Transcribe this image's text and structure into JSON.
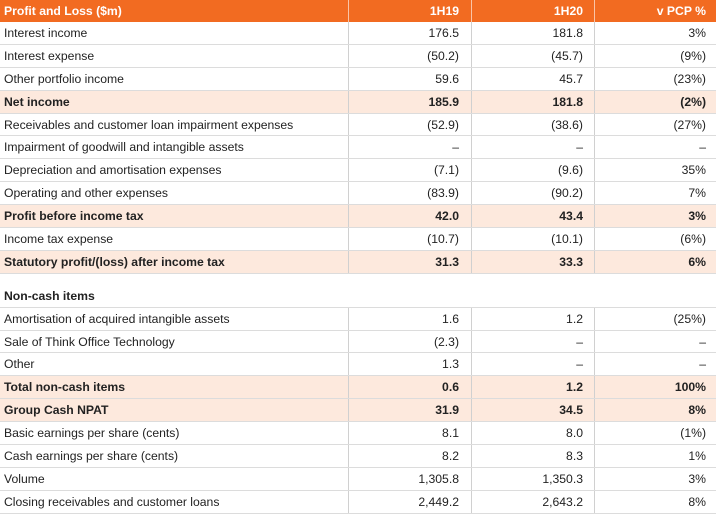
{
  "header": {
    "label": "Profit and Loss ($m)",
    "c1": "1H19",
    "c2": "1H20",
    "c3": "v PCP %"
  },
  "rows1": [
    {
      "label": "Interest income",
      "c1": "176.5",
      "c2": "181.8",
      "c3": "3%"
    },
    {
      "label": "Interest expense",
      "c1": "(50.2)",
      "c2": "(45.7)",
      "c3": "(9%)"
    },
    {
      "label": "Other portfolio income",
      "c1": "59.6",
      "c2": "45.7",
      "c3": "(23%)"
    },
    {
      "label": "Net income",
      "c1": "185.9",
      "c2": "181.8",
      "c3": "(2%)",
      "bold": true
    },
    {
      "label": "Receivables and customer loan impairment expenses",
      "c1": "(52.9)",
      "c2": "(38.6)",
      "c3": "(27%)"
    },
    {
      "label": "Impairment of goodwill and intangible assets",
      "c1": "–",
      "c2": "–",
      "c3": "–"
    },
    {
      "label": "Depreciation and amortisation expenses",
      "c1": "(7.1)",
      "c2": "(9.6)",
      "c3": "35%"
    },
    {
      "label": "Operating and other expenses",
      "c1": "(83.9)",
      "c2": "(90.2)",
      "c3": "7%"
    },
    {
      "label": "Profit before income tax",
      "c1": "42.0",
      "c2": "43.4",
      "c3": "3%",
      "bold": true
    },
    {
      "label": "Income tax expense",
      "c1": "(10.7)",
      "c2": "(10.1)",
      "c3": "(6%)"
    },
    {
      "label": "Statutory profit/(loss) after income tax",
      "c1": "31.3",
      "c2": "33.3",
      "c3": "6%",
      "bold": true
    }
  ],
  "section2_title": "Non-cash items",
  "rows2": [
    {
      "label": "Amortisation of acquired intangible assets",
      "c1": "1.6",
      "c2": "1.2",
      "c3": "(25%)"
    },
    {
      "label": "Sale of Think Office Technology",
      "c1": "(2.3)",
      "c2": "–",
      "c3": "–"
    },
    {
      "label": "Other",
      "c1": "1.3",
      "c2": "–",
      "c3": "–"
    },
    {
      "label": "Total non-cash items",
      "c1": "0.6",
      "c2": "1.2",
      "c3": "100%",
      "bold": true
    },
    {
      "label": "Group Cash NPAT",
      "c1": "31.9",
      "c2": "34.5",
      "c3": "8%",
      "bold": true
    },
    {
      "label": "Basic earnings per share (cents)",
      "c1": "8.1",
      "c2": "8.0",
      "c3": "(1%)"
    },
    {
      "label": "Cash earnings per share (cents)",
      "c1": "8.2",
      "c2": "8.3",
      "c3": "1%"
    },
    {
      "label": "Volume",
      "c1": "1,305.8",
      "c2": "1,350.3",
      "c3": "3%"
    },
    {
      "label": "Closing receivables and customer loans",
      "c1": "2,449.2",
      "c2": "2,643.2",
      "c3": "8%"
    }
  ],
  "colors": {
    "header_bg": "#f26b21",
    "highlight_bg": "#fde9dd"
  }
}
